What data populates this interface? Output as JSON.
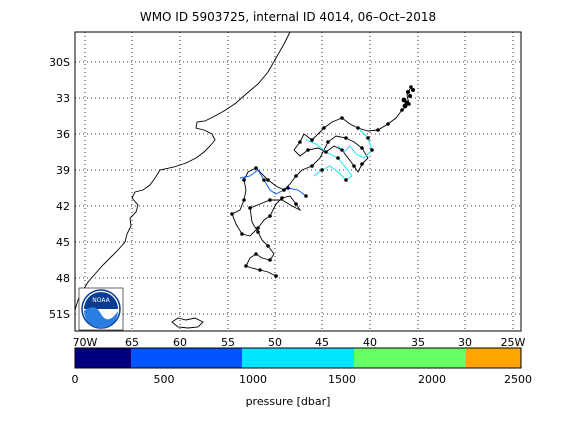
{
  "title": "WMO ID 5903725, internal ID 4014, 06–Oct–2018",
  "map": {
    "lon_range": [
      -70,
      -25
    ],
    "lat_range": [
      -52,
      -28
    ],
    "lon_ticks": [
      "70W",
      "65",
      "60",
      "55",
      "50",
      "45",
      "40",
      "35",
      "30",
      "25W"
    ],
    "lat_ticks": [
      "30S",
      "33",
      "36",
      "39",
      "42",
      "45",
      "48",
      "51S"
    ],
    "grid": "dotted",
    "logo": "NOAA"
  },
  "colorbar": {
    "tick_labels": [
      "0",
      "500",
      "1000",
      "1500",
      "2000",
      "2500"
    ],
    "label": "pressure [dbar]",
    "colors": [
      "#00007f",
      "#0055ff",
      "#00e5ff",
      "#66ff66",
      "#ffa500"
    ]
  },
  "colors": {
    "track": "#000000",
    "coast": "#000000",
    "dot": "#000000"
  }
}
